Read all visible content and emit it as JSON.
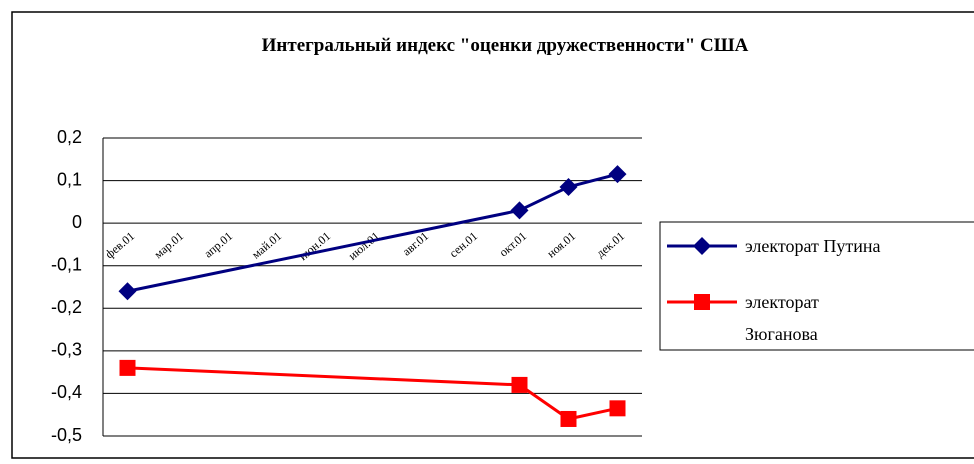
{
  "chart_data": {
    "type": "line",
    "title": "Интегральный индекс \"оценки дружественности\" США",
    "categories": [
      "фев.01",
      "мар.01",
      "апр.01",
      "май.01",
      "июн.01",
      "июл.01",
      "авг.01",
      "сен.01",
      "окт.01",
      "ноя.01",
      "дек.01"
    ],
    "series": [
      {
        "name": "электорат Путина",
        "color": "#000080",
        "marker": "diamond",
        "values": [
          -0.16,
          null,
          null,
          null,
          null,
          null,
          null,
          null,
          0.03,
          0.085,
          0.115
        ]
      },
      {
        "name": "электорат Зюганова",
        "color": "#ff0000",
        "marker": "square",
        "values": [
          -0.34,
          null,
          null,
          null,
          null,
          null,
          null,
          null,
          -0.38,
          -0.46,
          -0.435
        ]
      }
    ],
    "connect_gaps": true,
    "ylim": [
      -0.5,
      0.2
    ],
    "yticks": [
      {
        "value": 0.2,
        "label": "0,2"
      },
      {
        "value": 0.1,
        "label": "0,1"
      },
      0,
      {
        "value": -0.1,
        "label": "-0,1"
      },
      {
        "value": -0.2,
        "label": "-0,2"
      },
      {
        "value": -0.3,
        "label": "-0,3"
      },
      {
        "value": -0.4,
        "label": "-0,4"
      },
      {
        "value": -0.5,
        "label": "-0,5"
      }
    ],
    "grid": true,
    "legend": "right"
  }
}
